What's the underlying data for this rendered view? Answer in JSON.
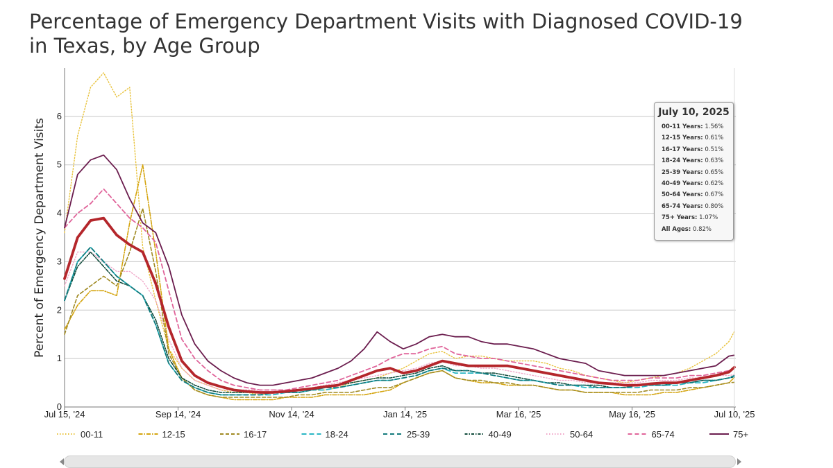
{
  "title": {
    "line1": "Percentage of Emergency Department Visits with Diagnosed COVID-19",
    "line2": "in Texas, by Age Group"
  },
  "chart_data": {
    "type": "line",
    "title": "Percentage of Emergency Department Visits with Diagnosed COVID-19 in Texas, by Age Group",
    "xlabel": "",
    "ylabel": "Percent of Emergency Department Visits",
    "xlim_days": [
      0,
      360
    ],
    "ylim": [
      0,
      7
    ],
    "yticks": [
      0,
      1,
      2,
      3,
      4,
      5,
      6
    ],
    "x_ticks": [
      {
        "day": 0,
        "label": "Jul 15, '24"
      },
      {
        "day": 61,
        "label": "Sep 14, '24"
      },
      {
        "day": 122,
        "label": "Nov 14, '24"
      },
      {
        "day": 183,
        "label": "Jan 14, '25"
      },
      {
        "day": 244,
        "label": "Mar 16, '25"
      },
      {
        "day": 305,
        "label": "May 16, '25"
      },
      {
        "day": 360,
        "label": "Jul 10, '25"
      }
    ],
    "grid": true,
    "legend_position": "bottom",
    "x_days": [
      0,
      7,
      14,
      21,
      28,
      35,
      42,
      49,
      56,
      63,
      70,
      77,
      84,
      91,
      98,
      105,
      112,
      119,
      126,
      133,
      140,
      147,
      154,
      161,
      168,
      175,
      182,
      189,
      196,
      203,
      210,
      217,
      224,
      231,
      238,
      245,
      252,
      259,
      266,
      273,
      280,
      287,
      294,
      301,
      308,
      315,
      322,
      329,
      336,
      343,
      350,
      357,
      360
    ],
    "series": [
      {
        "name": "00-11",
        "color": "#e8c23a",
        "dash": "1.5,2.5",
        "width": 1.4,
        "values": [
          3.6,
          5.6,
          6.6,
          6.9,
          6.4,
          6.6,
          3.3,
          2.2,
          1.2,
          0.8,
          0.55,
          0.45,
          0.35,
          0.3,
          0.3,
          0.25,
          0.3,
          0.3,
          0.3,
          0.35,
          0.35,
          0.4,
          0.5,
          0.55,
          0.6,
          0.7,
          0.8,
          0.95,
          1.1,
          1.15,
          1.0,
          1.05,
          1.05,
          1.0,
          0.95,
          0.95,
          0.95,
          0.9,
          0.8,
          0.75,
          0.65,
          0.6,
          0.55,
          0.5,
          0.55,
          0.6,
          0.65,
          0.7,
          0.8,
          0.95,
          1.1,
          1.35,
          1.56
        ]
      },
      {
        "name": "12-15",
        "color": "#d4a40e",
        "dash": "6,2,1.5,2",
        "width": 1.6,
        "values": [
          1.6,
          2.1,
          2.4,
          2.4,
          2.3,
          3.8,
          5.0,
          3.2,
          1.2,
          0.6,
          0.35,
          0.25,
          0.2,
          0.15,
          0.15,
          0.15,
          0.15,
          0.2,
          0.2,
          0.2,
          0.25,
          0.25,
          0.25,
          0.25,
          0.3,
          0.35,
          0.5,
          0.6,
          0.7,
          0.75,
          0.6,
          0.55,
          0.5,
          0.5,
          0.45,
          0.45,
          0.45,
          0.4,
          0.35,
          0.35,
          0.3,
          0.3,
          0.3,
          0.25,
          0.25,
          0.25,
          0.3,
          0.3,
          0.35,
          0.4,
          0.45,
          0.5,
          0.61
        ]
      },
      {
        "name": "16-17",
        "color": "#a08a22",
        "dash": "5,3",
        "width": 1.6,
        "values": [
          1.5,
          2.3,
          2.5,
          2.7,
          2.5,
          3.2,
          4.1,
          2.8,
          1.1,
          0.6,
          0.35,
          0.25,
          0.2,
          0.2,
          0.2,
          0.2,
          0.2,
          0.2,
          0.25,
          0.25,
          0.3,
          0.3,
          0.3,
          0.35,
          0.4,
          0.4,
          0.5,
          0.6,
          0.7,
          0.75,
          0.6,
          0.55,
          0.55,
          0.5,
          0.5,
          0.45,
          0.45,
          0.4,
          0.35,
          0.35,
          0.3,
          0.3,
          0.3,
          0.3,
          0.3,
          0.35,
          0.35,
          0.35,
          0.4,
          0.4,
          0.45,
          0.5,
          0.51
        ]
      },
      {
        "name": "18-24",
        "color": "#29b6c4",
        "dash": "7,4",
        "width": 1.8,
        "values": [
          2.2,
          3.0,
          3.3,
          3.0,
          2.7,
          2.5,
          2.3,
          1.7,
          0.9,
          0.55,
          0.4,
          0.3,
          0.25,
          0.25,
          0.25,
          0.25,
          0.25,
          0.3,
          0.3,
          0.35,
          0.35,
          0.4,
          0.45,
          0.5,
          0.55,
          0.55,
          0.6,
          0.65,
          0.75,
          0.8,
          0.7,
          0.7,
          0.7,
          0.65,
          0.6,
          0.55,
          0.55,
          0.5,
          0.45,
          0.45,
          0.4,
          0.4,
          0.4,
          0.4,
          0.4,
          0.45,
          0.45,
          0.45,
          0.5,
          0.5,
          0.55,
          0.6,
          0.63
        ]
      },
      {
        "name": "25-39",
        "color": "#137a7c",
        "dash": "6,4",
        "width": 1.8,
        "values": [
          2.2,
          3.0,
          3.3,
          3.0,
          2.7,
          2.5,
          2.3,
          1.7,
          0.9,
          0.55,
          0.4,
          0.3,
          0.25,
          0.25,
          0.25,
          0.25,
          0.3,
          0.3,
          0.3,
          0.35,
          0.4,
          0.4,
          0.45,
          0.5,
          0.55,
          0.55,
          0.6,
          0.65,
          0.75,
          0.8,
          0.75,
          0.75,
          0.7,
          0.65,
          0.6,
          0.55,
          0.55,
          0.5,
          0.45,
          0.45,
          0.45,
          0.4,
          0.4,
          0.4,
          0.45,
          0.45,
          0.45,
          0.5,
          0.5,
          0.55,
          0.55,
          0.6,
          0.65
        ]
      },
      {
        "name": "40-49",
        "color": "#0f4a3a",
        "dash": "4,2,1.5,2",
        "width": 1.6,
        "values": [
          2.2,
          2.9,
          3.2,
          2.9,
          2.6,
          2.5,
          2.3,
          1.8,
          1.0,
          0.6,
          0.45,
          0.35,
          0.3,
          0.3,
          0.3,
          0.3,
          0.3,
          0.3,
          0.35,
          0.35,
          0.4,
          0.45,
          0.5,
          0.55,
          0.6,
          0.6,
          0.65,
          0.7,
          0.8,
          0.85,
          0.75,
          0.75,
          0.7,
          0.7,
          0.65,
          0.6,
          0.55,
          0.5,
          0.5,
          0.45,
          0.45,
          0.45,
          0.4,
          0.4,
          0.45,
          0.45,
          0.45,
          0.5,
          0.5,
          0.55,
          0.55,
          0.6,
          0.62
        ]
      },
      {
        "name": "50-64",
        "color": "#f0a6c8",
        "dash": "1.5,2.5",
        "width": 1.4,
        "values": [
          2.5,
          3.2,
          3.2,
          3.0,
          2.8,
          2.8,
          2.6,
          2.2,
          1.4,
          0.8,
          0.55,
          0.45,
          0.35,
          0.35,
          0.35,
          0.35,
          0.35,
          0.35,
          0.35,
          0.4,
          0.45,
          0.5,
          0.55,
          0.6,
          0.65,
          0.7,
          0.75,
          0.8,
          0.9,
          0.95,
          0.85,
          0.85,
          0.8,
          0.8,
          0.75,
          0.7,
          0.65,
          0.6,
          0.55,
          0.55,
          0.5,
          0.5,
          0.5,
          0.5,
          0.5,
          0.55,
          0.55,
          0.55,
          0.6,
          0.6,
          0.65,
          0.65,
          0.67
        ]
      },
      {
        "name": "65-74",
        "color": "#e0649a",
        "dash": "6,4",
        "width": 1.8,
        "values": [
          3.7,
          4.0,
          4.2,
          4.5,
          4.2,
          3.9,
          3.7,
          3.4,
          2.4,
          1.4,
          1.0,
          0.75,
          0.55,
          0.45,
          0.4,
          0.35,
          0.35,
          0.35,
          0.4,
          0.45,
          0.5,
          0.55,
          0.65,
          0.75,
          0.85,
          1.0,
          1.1,
          1.1,
          1.2,
          1.25,
          1.1,
          1.05,
          1.0,
          1.0,
          0.95,
          0.9,
          0.85,
          0.8,
          0.75,
          0.7,
          0.65,
          0.6,
          0.55,
          0.55,
          0.55,
          0.6,
          0.6,
          0.6,
          0.65,
          0.65,
          0.7,
          0.75,
          0.8
        ]
      },
      {
        "name": "75+",
        "color": "#6b1d4e",
        "dash": "",
        "width": 1.8,
        "values": [
          3.7,
          4.8,
          5.1,
          5.2,
          4.9,
          4.3,
          3.8,
          3.6,
          2.9,
          1.9,
          1.3,
          0.95,
          0.75,
          0.6,
          0.5,
          0.45,
          0.45,
          0.5,
          0.55,
          0.6,
          0.7,
          0.8,
          0.95,
          1.2,
          1.55,
          1.35,
          1.2,
          1.3,
          1.45,
          1.5,
          1.45,
          1.45,
          1.35,
          1.3,
          1.3,
          1.25,
          1.2,
          1.1,
          1.0,
          0.95,
          0.9,
          0.75,
          0.7,
          0.65,
          0.65,
          0.65,
          0.65,
          0.7,
          0.75,
          0.8,
          0.85,
          1.05,
          1.07
        ]
      },
      {
        "name": "All Ages",
        "color": "#b4262b",
        "dash": "",
        "width": 3.8,
        "values": [
          2.65,
          3.5,
          3.85,
          3.9,
          3.55,
          3.35,
          3.2,
          2.55,
          1.65,
          0.95,
          0.65,
          0.5,
          0.42,
          0.35,
          0.32,
          0.3,
          0.3,
          0.32,
          0.35,
          0.38,
          0.42,
          0.45,
          0.55,
          0.65,
          0.75,
          0.8,
          0.7,
          0.75,
          0.85,
          0.95,
          0.9,
          0.85,
          0.85,
          0.85,
          0.85,
          0.8,
          0.75,
          0.7,
          0.65,
          0.6,
          0.55,
          0.5,
          0.48,
          0.45,
          0.45,
          0.48,
          0.5,
          0.5,
          0.55,
          0.6,
          0.65,
          0.72,
          0.82
        ]
      }
    ],
    "legend": [
      {
        "label": "00-11",
        "color": "#e8c23a",
        "dash": "1.5,2.5"
      },
      {
        "label": "12-15",
        "color": "#d4a40e",
        "dash": "6,2,1.5,2"
      },
      {
        "label": "16-17",
        "color": "#a08a22",
        "dash": "5,3"
      },
      {
        "label": "18-24",
        "color": "#29b6c4",
        "dash": "7,4"
      },
      {
        "label": "25-39",
        "color": "#137a7c",
        "dash": "6,4"
      },
      {
        "label": "40-49",
        "color": "#0f4a3a",
        "dash": "4,2,1.5,2"
      },
      {
        "label": "50-64",
        "color": "#f0a6c8",
        "dash": "1.5,2.5"
      },
      {
        "label": "65-74",
        "color": "#e0649a",
        "dash": "6,4"
      },
      {
        "label": "75+",
        "color": "#6b1d4e",
        "dash": ""
      }
    ]
  },
  "tooltip": {
    "date": "July 10, 2025",
    "rows": [
      {
        "label": "00-11 Years:",
        "value": "1.56%"
      },
      {
        "label": "12-15 Years:",
        "value": "0.61%"
      },
      {
        "label": "16-17 Years:",
        "value": "0.51%"
      },
      {
        "label": "18-24 Years:",
        "value": "0.63%"
      },
      {
        "label": "25-39 Years:",
        "value": "0.65%"
      },
      {
        "label": "40-49 Years:",
        "value": "0.62%"
      },
      {
        "label": "50-64 Years:",
        "value": "0.67%"
      },
      {
        "label": "65-74 Years:",
        "value": "0.80%"
      },
      {
        "label": "75+ Years:",
        "value": "1.07%"
      },
      {
        "label": "All Ages:",
        "value": "0.82%"
      }
    ]
  }
}
